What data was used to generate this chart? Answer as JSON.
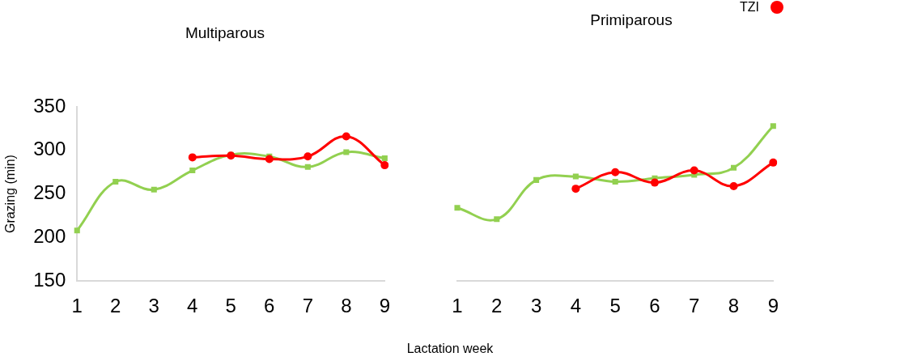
{
  "chart_data": [
    {
      "type": "line",
      "title": "Multiparous",
      "ylabel": "Grazing (min)",
      "xlabel": "Lactation week",
      "categories": [
        "1",
        "2",
        "3",
        "4",
        "5",
        "6",
        "7",
        "8",
        "9"
      ],
      "ylim": [
        150,
        350
      ],
      "yticks": [
        150,
        200,
        250,
        300,
        350
      ],
      "grid": false,
      "legend": false,
      "series": [
        {
          "color": "#92d050",
          "marker": "square",
          "values": [
            208,
            264,
            255,
            277,
            295,
            293,
            281,
            298,
            291
          ]
        },
        {
          "color": "#ff0000",
          "marker": "circle",
          "values": [
            null,
            null,
            null,
            292,
            294,
            290,
            293,
            316,
            283
          ]
        }
      ]
    },
    {
      "type": "line",
      "title": "Primiparous",
      "categories": [
        "1",
        "2",
        "3",
        "4",
        "5",
        "6",
        "7",
        "8",
        "9"
      ],
      "ylim": [
        150,
        350
      ],
      "yticks": [
        150,
        200,
        250,
        300,
        350
      ],
      "tick_labels": "x",
      "grid": false,
      "legend": "top right",
      "series": [
        {
          "color": "#92d050",
          "marker": "square",
          "values": [
            234,
            221,
            266,
            270,
            264,
            268,
            272,
            280,
            328
          ]
        },
        {
          "name": "TZI",
          "color": "#ff0000",
          "marker": "circle",
          "values": [
            null,
            null,
            null,
            256,
            275,
            263,
            277,
            259,
            286
          ]
        }
      ]
    }
  ]
}
